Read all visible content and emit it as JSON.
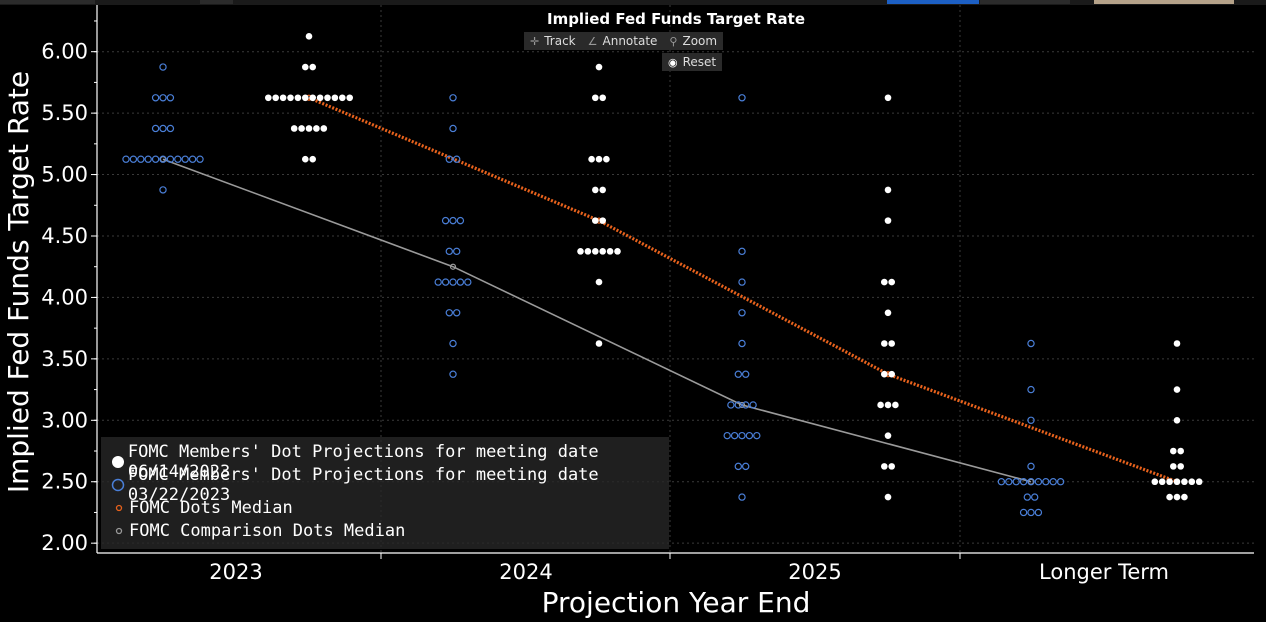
{
  "chart_data": {
    "type": "scatter",
    "title": "Implied Fed Funds Target Rate",
    "xlabel": "Projection Year End",
    "ylabel": "Implied Fed Funds Target Rate",
    "categories": [
      "2023",
      "2024",
      "2025",
      "Longer Term"
    ],
    "ylim": [
      1.92,
      6.38
    ],
    "yticks": [
      "2.00",
      "2.50",
      "3.00",
      "3.50",
      "4.00",
      "4.50",
      "5.00",
      "5.50",
      "6.00"
    ],
    "grid": true,
    "legend_position": "bottom-left",
    "series": [
      {
        "name": "FOMC Members' Dot Projections for meeting date 06/14/2023",
        "kind": "dots",
        "color": "#ffffff",
        "points": {
          "2023": [
            [
              6.125,
              1
            ],
            [
              5.875,
              2
            ],
            [
              5.625,
              12
            ],
            [
              5.375,
              5
            ],
            [
              5.125,
              2
            ]
          ],
          "2024": [
            [
              5.875,
              1
            ],
            [
              5.625,
              2
            ],
            [
              5.125,
              3
            ],
            [
              4.875,
              2
            ],
            [
              4.625,
              2
            ],
            [
              4.375,
              6
            ],
            [
              4.125,
              1
            ],
            [
              3.625,
              1
            ]
          ],
          "2025": [
            [
              5.625,
              1
            ],
            [
              4.875,
              1
            ],
            [
              4.625,
              1
            ],
            [
              4.125,
              2
            ],
            [
              3.875,
              1
            ],
            [
              3.625,
              2
            ],
            [
              3.375,
              2
            ],
            [
              3.125,
              3
            ],
            [
              2.875,
              1
            ],
            [
              2.625,
              2
            ],
            [
              2.375,
              1
            ]
          ],
          "Longer Term": [
            [
              3.625,
              1
            ],
            [
              3.25,
              1
            ],
            [
              3.0,
              1
            ],
            [
              2.75,
              2
            ],
            [
              2.625,
              2
            ],
            [
              2.5,
              7
            ],
            [
              2.375,
              3
            ]
          ]
        }
      },
      {
        "name": "FOMC Members' Dot Projections for meeting date 03/22/2023",
        "kind": "hollow",
        "color": "#4a7fd8",
        "points": {
          "2023": [
            [
              5.875,
              1
            ],
            [
              5.625,
              3
            ],
            [
              5.375,
              3
            ],
            [
              5.125,
              11
            ],
            [
              4.875,
              1
            ]
          ],
          "2024": [
            [
              5.625,
              1
            ],
            [
              5.375,
              1
            ],
            [
              5.125,
              2
            ],
            [
              4.625,
              3
            ],
            [
              4.375,
              2
            ],
            [
              4.125,
              5
            ],
            [
              3.875,
              2
            ],
            [
              3.625,
              1
            ],
            [
              3.375,
              1
            ]
          ],
          "2025": [
            [
              5.625,
              1
            ],
            [
              4.375,
              1
            ],
            [
              4.125,
              1
            ],
            [
              3.875,
              1
            ],
            [
              3.625,
              1
            ],
            [
              3.375,
              2
            ],
            [
              3.125,
              4
            ],
            [
              2.875,
              5
            ],
            [
              2.625,
              2
            ],
            [
              2.375,
              1
            ]
          ],
          "Longer Term": [
            [
              3.625,
              1
            ],
            [
              3.25,
              1
            ],
            [
              3.0,
              1
            ],
            [
              2.625,
              1
            ],
            [
              2.5,
              9
            ],
            [
              2.375,
              2
            ],
            [
              2.25,
              3
            ]
          ]
        }
      },
      {
        "name": "FOMC Dots Median",
        "kind": "median",
        "color": "#e8621c",
        "values": [
          5.625,
          4.625,
          3.375,
          2.5
        ]
      },
      {
        "name": "FOMC Comparison Dots Median",
        "kind": "median",
        "color": "#9a9a9a",
        "values": [
          5.125,
          4.25,
          3.125,
          2.5
        ]
      }
    ]
  },
  "toolbar": {
    "track": "Track",
    "annotate": "Annotate",
    "zoom": "Zoom",
    "reset": "Reset"
  },
  "colors": {
    "background": "#000000",
    "grid": "#3a3a3a",
    "axis": "#ffffff"
  }
}
